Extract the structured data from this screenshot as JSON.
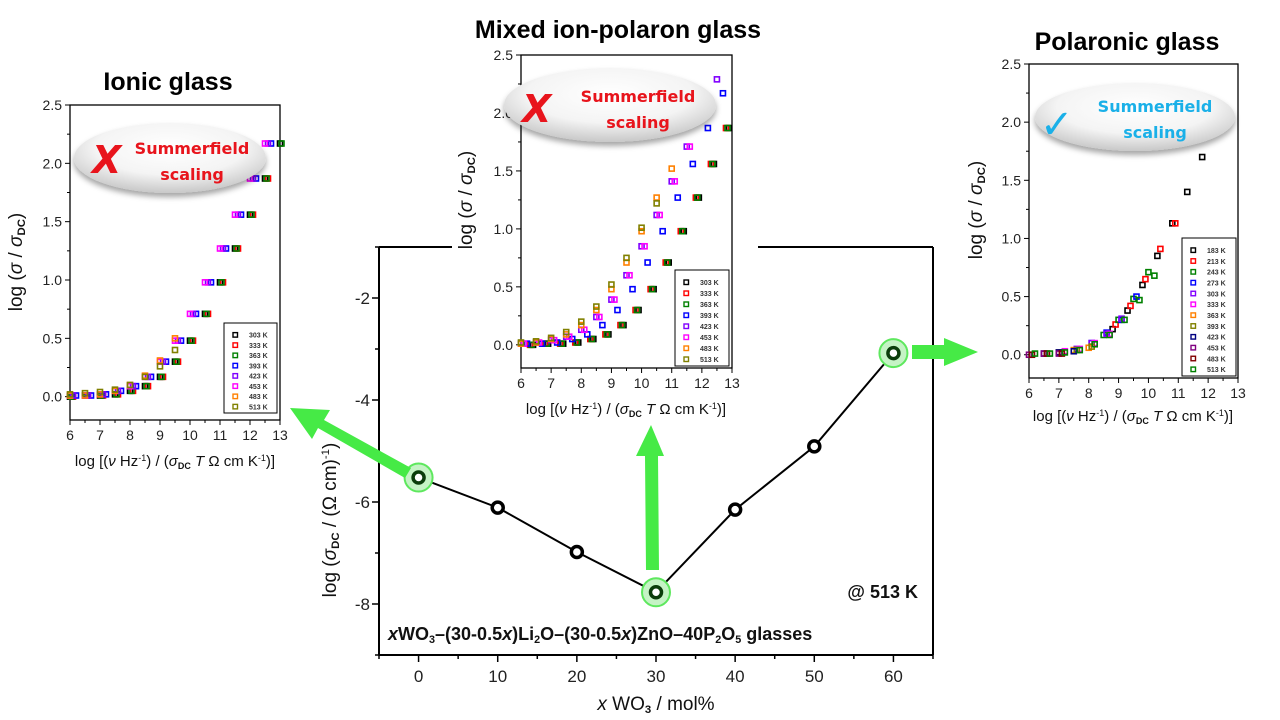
{
  "titles": {
    "ionic": "Ionic glass",
    "mixed": "Mixed ion-polaron glass",
    "polaronic": "Polaronic glass"
  },
  "badges": {
    "ionic": {
      "icon": "x-mark-icon",
      "symbol": "X",
      "line1": "Summerfield",
      "line2": "scaling",
      "color": "#e8141c"
    },
    "mixed": {
      "icon": "x-mark-icon",
      "symbol": "X",
      "line1": "Summerfield",
      "line2": "scaling",
      "color": "#e8141c"
    },
    "polaronic": {
      "icon": "check-mark-icon",
      "symbol": "✓",
      "line1": "Summerfield",
      "line2": "scaling",
      "color": "#1ab0e8"
    }
  },
  "accent_green": "#46ea46",
  "main_annotations": {
    "temperature": "@ 513 K"
  },
  "chart_data": [
    {
      "id": "main",
      "type": "line",
      "title": "",
      "composition_parts": [
        [
          "x",
          "bi"
        ],
        [
          "WO",
          "b"
        ],
        [
          "3",
          "bsub"
        ],
        [
          "–(30-0.5",
          "b"
        ],
        [
          "x",
          "bi"
        ],
        [
          ")Li",
          "b"
        ],
        [
          "2",
          "bsub"
        ],
        [
          "O–(30-0.5",
          "b"
        ],
        [
          "x",
          "bi"
        ],
        [
          ")ZnO–40P",
          "b"
        ],
        [
          "2",
          "bsub"
        ],
        [
          "O",
          "b"
        ],
        [
          "5",
          "bsub"
        ],
        [
          " glasses",
          "b"
        ]
      ],
      "xlabel_parts": [
        [
          "x",
          "i"
        ],
        [
          " WO",
          "n"
        ],
        [
          "3",
          "sub"
        ],
        [
          " / mol%",
          "n"
        ]
      ],
      "ylabel_parts": [
        [
          "log (",
          "n"
        ],
        [
          "σ",
          "i"
        ],
        [
          "DC",
          "sub"
        ],
        [
          " / (Ω cm)",
          "n"
        ],
        [
          "-1",
          "sup"
        ],
        [
          ")",
          "n"
        ]
      ],
      "xlim": [
        -5,
        65
      ],
      "ylim": [
        -9,
        -1
      ],
      "xticks": [
        0,
        10,
        20,
        30,
        40,
        50,
        60
      ],
      "yticks": [
        -2,
        -4,
        -6,
        -8
      ],
      "x": [
        0,
        10,
        20,
        30,
        40,
        50,
        60
      ],
      "y": [
        -5.52,
        -6.11,
        -6.98,
        -7.77,
        -6.15,
        -4.91,
        -3.08
      ],
      "highlighted_x": [
        0,
        30,
        60
      ]
    },
    {
      "id": "ionic",
      "type": "scatter",
      "title": "Ionic glass",
      "xlabel_parts": [
        [
          "log [(",
          "n"
        ],
        [
          "ν",
          "i"
        ],
        [
          " Hz",
          "n"
        ],
        [
          "-1",
          "sup"
        ],
        [
          ") / (",
          "n"
        ],
        [
          "σ",
          "i"
        ],
        [
          "DC",
          "sub"
        ],
        [
          " T",
          "i"
        ],
        [
          " Ω cm K",
          "n"
        ],
        [
          "-1",
          "sup"
        ],
        [
          ")]",
          "n"
        ]
      ],
      "ylabel_parts": [
        [
          "log (",
          "n"
        ],
        [
          "σ",
          "i"
        ],
        [
          " / ",
          "n"
        ],
        [
          "σ",
          "i"
        ],
        [
          "DC",
          "sub"
        ],
        [
          ")",
          "n"
        ]
      ],
      "xlim": [
        6,
        13
      ],
      "ylim": [
        -0.2,
        2.5
      ],
      "xticks": [
        6,
        7,
        8,
        9,
        10,
        11,
        12,
        13
      ],
      "yticks": [
        0.0,
        0.5,
        1.0,
        1.5,
        2.0,
        2.5
      ],
      "dx": 0.5,
      "series": [
        {
          "name": "303 K",
          "color": "#000000",
          "x_start": 6,
          "y": [
            0.0,
            0.01,
            0.01,
            0.02,
            0.05,
            0.09,
            0.17,
            0.3,
            0.48,
            0.71,
            0.98,
            1.27,
            1.56,
            1.87,
            2.17
          ]
        },
        {
          "name": "333 K",
          "color": "#ff0000",
          "x_start": 6.1,
          "y": [
            0.0,
            0.01,
            0.01,
            0.02,
            0.05,
            0.09,
            0.17,
            0.3,
            0.48,
            0.71,
            0.98,
            1.27,
            1.56,
            1.87,
            2.17
          ]
        },
        {
          "name": "363 K",
          "color": "#008000",
          "x_start": 6.05,
          "y": [
            0.0,
            0.01,
            0.01,
            0.02,
            0.05,
            0.09,
            0.17,
            0.3,
            0.48,
            0.71,
            0.98,
            1.27,
            1.56,
            1.87,
            2.17
          ]
        },
        {
          "name": "393 K",
          "color": "#0000ff",
          "x_start": 6.2,
          "y": [
            0.01,
            0.01,
            0.02,
            0.05,
            0.09,
            0.17,
            0.3,
            0.48,
            0.71,
            0.98,
            1.27,
            1.56,
            1.87,
            2.17
          ]
        },
        {
          "name": "423 K",
          "color": "#8000ff",
          "x_start": 6.1,
          "y": [
            0.01,
            0.01,
            0.02,
            0.05,
            0.09,
            0.17,
            0.3,
            0.48,
            0.71,
            0.98,
            1.27,
            1.56,
            1.87,
            2.17
          ]
        },
        {
          "name": "453 K",
          "color": "#ff00ff",
          "x_start": 6,
          "y": [
            0.01,
            0.01,
            0.02,
            0.05,
            0.09,
            0.17,
            0.3,
            0.48,
            0.71,
            0.98,
            1.27,
            1.56,
            1.87,
            2.17
          ]
        },
        {
          "name": "483 K",
          "color": "#ff8000",
          "x_start": 6,
          "y": [
            0.01,
            0.01,
            0.02,
            0.05,
            0.1,
            0.18,
            0.31,
            0.5
          ]
        },
        {
          "name": "513 K",
          "color": "#808000",
          "x_start": 6,
          "y": [
            0.02,
            0.03,
            0.04,
            0.06,
            0.1,
            0.17,
            0.26,
            0.4
          ]
        }
      ],
      "legend_position": "bottom-right"
    },
    {
      "id": "mixed",
      "type": "scatter",
      "title": "Mixed ion-polaron glass",
      "xlabel_parts": [
        [
          "log [(",
          "n"
        ],
        [
          "ν",
          "i"
        ],
        [
          " Hz",
          "n"
        ],
        [
          "-1",
          "sup"
        ],
        [
          ") / (",
          "n"
        ],
        [
          "σ",
          "i"
        ],
        [
          "DC",
          "sub"
        ],
        [
          " T",
          "i"
        ],
        [
          " Ω cm K",
          "n"
        ],
        [
          "-1",
          "sup"
        ],
        [
          ")]",
          "n"
        ]
      ],
      "ylabel_parts": [
        [
          "log (",
          "n"
        ],
        [
          "σ",
          "i"
        ],
        [
          " / ",
          "n"
        ],
        [
          "σ",
          "i"
        ],
        [
          "DC",
          "sub"
        ],
        [
          ")",
          "n"
        ]
      ],
      "xlim": [
        6,
        13
      ],
      "ylim": [
        -0.2,
        2.5
      ],
      "xticks": [
        6,
        7,
        8,
        9,
        10,
        11,
        12,
        13
      ],
      "yticks": [
        0.0,
        0.5,
        1.0,
        1.5,
        2.0,
        2.5
      ],
      "dx": 0.5,
      "series": [
        {
          "name": "303 K",
          "color": "#000000",
          "x_start": 6.4,
          "y": [
            0.0,
            0.01,
            0.01,
            0.02,
            0.05,
            0.09,
            0.17,
            0.3,
            0.48,
            0.71,
            0.98,
            1.27,
            1.56,
            1.87
          ]
        },
        {
          "name": "333 K",
          "color": "#ff0000",
          "x_start": 6.3,
          "y": [
            0.0,
            0.01,
            0.01,
            0.02,
            0.05,
            0.09,
            0.17,
            0.3,
            0.48,
            0.71,
            0.98,
            1.27,
            1.56,
            1.87
          ]
        },
        {
          "name": "363 K",
          "color": "#008000",
          "x_start": 6.35,
          "y": [
            0.0,
            0.01,
            0.01,
            0.02,
            0.05,
            0.09,
            0.17,
            0.3,
            0.48,
            0.71,
            0.98,
            1.27,
            1.56,
            1.87,
            2.17
          ]
        },
        {
          "name": "393 K",
          "color": "#0000ff",
          "x_start": 6.2,
          "y": [
            0.01,
            0.01,
            0.02,
            0.05,
            0.09,
            0.17,
            0.3,
            0.48,
            0.71,
            0.98,
            1.27,
            1.56,
            1.87,
            2.17
          ]
        },
        {
          "name": "423 K",
          "color": "#8000ff",
          "x_start": 6.0,
          "y": [
            0.01,
            0.02,
            0.04,
            0.07,
            0.13,
            0.24,
            0.39,
            0.6,
            0.85,
            1.12,
            1.41,
            1.71,
            2.02,
            2.29
          ]
        },
        {
          "name": "453 K",
          "color": "#ff00ff",
          "x_start": 6.1,
          "y": [
            0.01,
            0.02,
            0.04,
            0.07,
            0.13,
            0.24,
            0.39,
            0.6,
            0.85,
            1.12,
            1.41,
            1.71
          ]
        },
        {
          "name": "483 K",
          "color": "#ff8000",
          "x_start": 6.0,
          "y": [
            0.01,
            0.02,
            0.05,
            0.09,
            0.17,
            0.3,
            0.48,
            0.71,
            0.98,
            1.27,
            1.52
          ]
        },
        {
          "name": "513 K",
          "color": "#808000",
          "x_start": 6.0,
          "y": [
            0.02,
            0.03,
            0.06,
            0.11,
            0.2,
            0.33,
            0.52,
            0.75,
            1.01,
            1.22
          ]
        }
      ],
      "legend_position": "bottom-right"
    },
    {
      "id": "polaronic",
      "type": "scatter",
      "title": "Polaronic glass",
      "xlabel_parts": [
        [
          "log [(",
          "n"
        ],
        [
          "ν",
          "i"
        ],
        [
          " Hz",
          "n"
        ],
        [
          "-1",
          "sup"
        ],
        [
          ") / (",
          "n"
        ],
        [
          "σ",
          "i"
        ],
        [
          "DC",
          "sub"
        ],
        [
          " T",
          "i"
        ],
        [
          " Ω cm K",
          "n"
        ],
        [
          "-1",
          "sup"
        ],
        [
          ")]",
          "n"
        ]
      ],
      "ylabel_parts": [
        [
          "log (",
          "n"
        ],
        [
          "σ",
          "i"
        ],
        [
          " / ",
          "n"
        ],
        [
          "σ",
          "i"
        ],
        [
          "DC",
          "sub"
        ],
        [
          ")",
          "n"
        ]
      ],
      "xlim": [
        6,
        13
      ],
      "ylim": [
        -0.2,
        2.5
      ],
      "xticks": [
        6,
        7,
        8,
        9,
        10,
        11,
        12,
        13
      ],
      "yticks": [
        0.0,
        0.5,
        1.0,
        1.5,
        2.0,
        2.5
      ],
      "dx": 0.5,
      "series": [
        {
          "name": "183 K",
          "color": "#000000",
          "x_start": 8.8,
          "y": [
            0.22,
            0.38,
            0.6,
            0.85,
            1.13,
            1.4,
            1.7
          ]
        },
        {
          "name": "213 K",
          "color": "#ff0000",
          "x_start": 8.9,
          "y": [
            0.26,
            0.42,
            0.65,
            0.91,
            1.13
          ]
        },
        {
          "name": "243 K",
          "color": "#008000",
          "x_start": 8.5,
          "y": [
            0.17,
            0.3,
            0.48,
            0.71
          ]
        },
        {
          "name": "273 K",
          "color": "#0000ff",
          "x_start": 8.1,
          "y": [
            0.1,
            0.19,
            0.3,
            0.5
          ]
        },
        {
          "name": "303 K",
          "color": "#8000ff",
          "x_start": 7.6,
          "y": [
            0.05,
            0.1,
            0.18,
            0.31
          ]
        },
        {
          "name": "333 K",
          "color": "#ff00ff",
          "x_start": 7.2,
          "y": [
            0.03,
            0.05,
            0.1,
            0.18
          ]
        },
        {
          "name": "363 K",
          "color": "#ff8000",
          "x_start": 7.0,
          "y": [
            0.02,
            0.04,
            0.06
          ]
        },
        {
          "name": "393 K",
          "color": "#808000",
          "x_start": 6.6,
          "y": [
            0.01,
            0.02,
            0.04,
            0.07
          ]
        },
        {
          "name": "423 K",
          "color": "#000080",
          "x_start": 6.5,
          "y": [
            0.01,
            0.02,
            0.03
          ]
        },
        {
          "name": "453 K",
          "color": "#800080",
          "x_start": 6.0,
          "y": [
            0.0,
            0.01,
            0.01
          ]
        },
        {
          "name": "483 K",
          "color": "#800000",
          "x_start": 6.1,
          "y": [
            0.0,
            0.01,
            0.01
          ]
        },
        {
          "name": "513 K",
          "color": "#008000",
          "x_start": 6.2,
          "y": [
            0.01,
            0.01,
            0.02,
            0.04,
            0.09,
            0.17,
            0.3,
            0.47,
            0.68
          ]
        }
      ],
      "legend_position": "bottom-right"
    }
  ]
}
